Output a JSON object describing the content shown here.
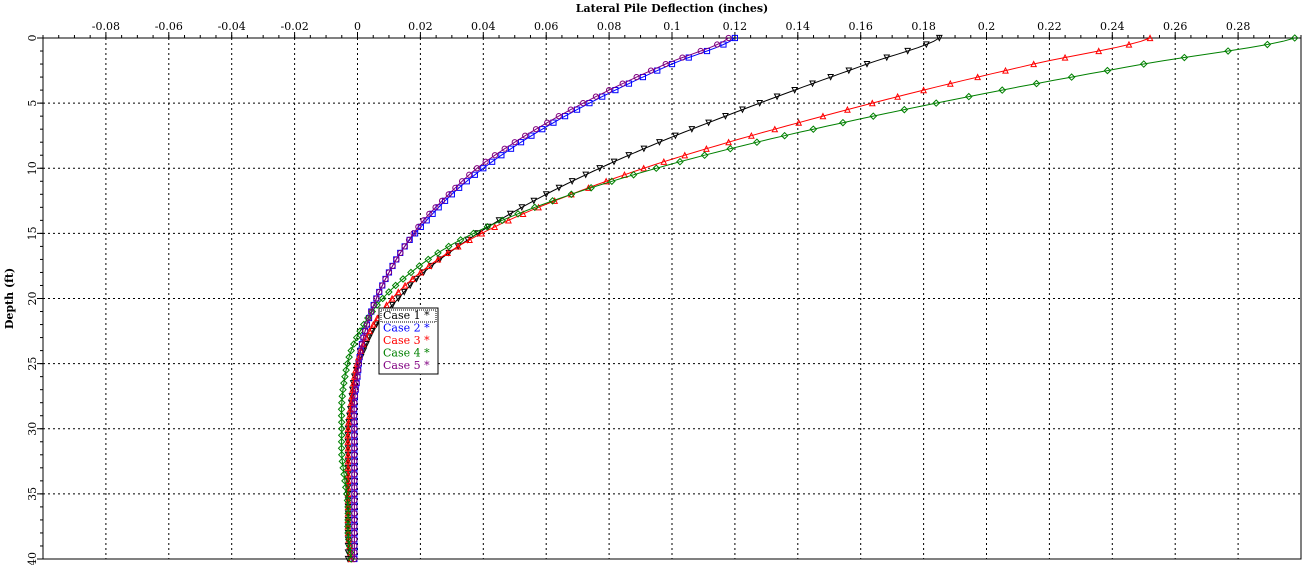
{
  "chart_data": {
    "type": "line",
    "title": "Lateral Pile Deflection (inches)",
    "xlabel": "Lateral Pile Deflection (inches)",
    "ylabel": "Depth (ft)",
    "xlim": [
      -0.1,
      0.3
    ],
    "ylim": [
      0,
      40
    ],
    "y_inverted": true,
    "x_axis_position": "top",
    "grid": true,
    "legend_position": "center-left",
    "x_ticks": [
      "-0.08",
      "-0.06",
      "-0.04",
      "-0.02",
      "0",
      "0.02",
      "0.04",
      "0.06",
      "0.08",
      "0.1",
      "0.12",
      "0.14",
      "0.16",
      "0.18",
      "0.2",
      "0.22",
      "0.24",
      "0.26",
      "0.28"
    ],
    "y_ticks": [
      "0",
      "5",
      "10",
      "15",
      "20",
      "25",
      "30",
      "35",
      "40"
    ],
    "series": [
      {
        "name": "Case 1",
        "legend_label": "Case 1 *",
        "color": "#000000",
        "marker": "triangle",
        "depth": [
          0,
          2,
          4,
          6,
          8,
          10,
          12,
          14,
          16,
          18,
          20,
          22,
          24,
          26,
          28,
          30,
          32,
          34,
          36,
          38,
          40
        ],
        "deflection": [
          0.185,
          0.162,
          0.139,
          0.117,
          0.096,
          0.077,
          0.06,
          0.045,
          0.032,
          0.021,
          0.013,
          0.006,
          0.002,
          -0.001,
          -0.002,
          -0.003,
          -0.003,
          -0.003,
          -0.003,
          -0.003,
          -0.003
        ]
      },
      {
        "name": "Case 2",
        "legend_label": "Case 2 *",
        "color": "#0000ff",
        "marker": "square",
        "depth": [
          0,
          2,
          4,
          6,
          8,
          10,
          12,
          14,
          16,
          18,
          20,
          22,
          24,
          26,
          28,
          30,
          32,
          34,
          36,
          38,
          40
        ],
        "deflection": [
          0.12,
          0.1,
          0.082,
          0.066,
          0.052,
          0.04,
          0.03,
          0.022,
          0.015,
          0.01,
          0.006,
          0.003,
          0.001,
          0.0,
          -0.001,
          -0.001,
          -0.001,
          -0.001,
          -0.001,
          -0.001,
          -0.001
        ]
      },
      {
        "name": "Case 3",
        "legend_label": "Case 3 *",
        "color": "#ff0000",
        "marker": "triangle-up",
        "depth": [
          0,
          2,
          4,
          6,
          8,
          10,
          12,
          14,
          16,
          18,
          20,
          22,
          24,
          26,
          28,
          30,
          32,
          34,
          36,
          38,
          40
        ],
        "deflection": [
          0.252,
          0.215,
          0.18,
          0.148,
          0.118,
          0.091,
          0.068,
          0.048,
          0.032,
          0.02,
          0.011,
          0.005,
          0.001,
          -0.001,
          -0.002,
          -0.003,
          -0.003,
          -0.003,
          -0.003,
          -0.003,
          -0.002
        ]
      },
      {
        "name": "Case 4",
        "legend_label": "Case 4 *",
        "color": "#008000",
        "marker": "diamond",
        "depth": [
          0,
          2,
          4,
          6,
          8,
          10,
          12,
          14,
          16,
          18,
          20,
          22,
          24,
          26,
          28,
          30,
          32,
          34,
          36,
          38,
          40
        ],
        "deflection": [
          0.298,
          0.25,
          0.205,
          0.164,
          0.127,
          0.095,
          0.068,
          0.046,
          0.029,
          0.017,
          0.008,
          0.002,
          -0.002,
          -0.004,
          -0.005,
          -0.005,
          -0.005,
          -0.004,
          -0.003,
          -0.003,
          -0.002
        ]
      },
      {
        "name": "Case 5",
        "legend_label": "Case 5 *",
        "color": "#800080",
        "marker": "circle",
        "depth": [
          0,
          2,
          4,
          6,
          8,
          10,
          12,
          14,
          16,
          18,
          20,
          22,
          24,
          26,
          28,
          30,
          32,
          34,
          36,
          38,
          40
        ],
        "deflection": [
          0.118,
          0.098,
          0.08,
          0.064,
          0.05,
          0.038,
          0.029,
          0.021,
          0.015,
          0.01,
          0.006,
          0.003,
          0.001,
          0.0,
          -0.001,
          -0.001,
          -0.001,
          -0.001,
          -0.001,
          -0.001,
          -0.001
        ]
      }
    ]
  }
}
